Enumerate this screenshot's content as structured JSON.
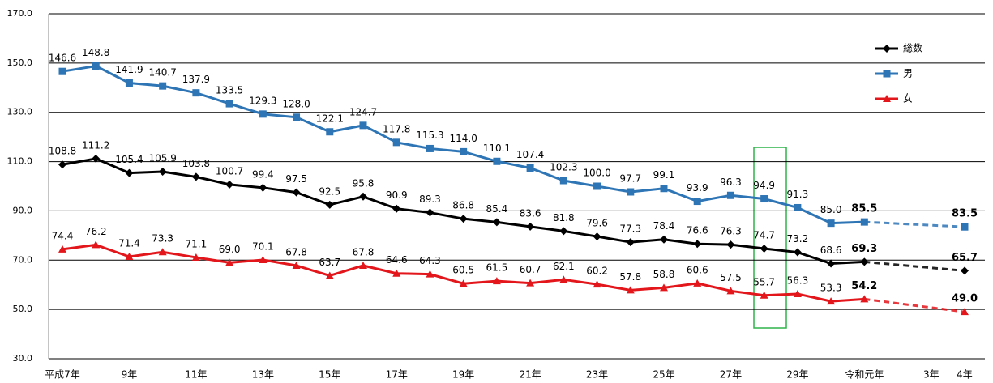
{
  "chart_data": {
    "type": "line",
    "categories": [
      "平成7年",
      null,
      "9年",
      null,
      "11年",
      null,
      "13年",
      null,
      "15年",
      null,
      "17年",
      null,
      "19年",
      null,
      "21年",
      null,
      "23年",
      null,
      "25年",
      null,
      "27年",
      null,
      "29年",
      null,
      "令和元年",
      null,
      "3年",
      "4年"
    ],
    "series": [
      {
        "name": "総数",
        "color": "#000000",
        "marker": "diamond",
        "values": [
          108.8,
          111.2,
          105.4,
          105.9,
          103.8,
          100.7,
          99.4,
          97.5,
          92.5,
          95.8,
          90.9,
          89.3,
          86.8,
          85.4,
          83.6,
          81.8,
          79.6,
          77.3,
          78.4,
          76.6,
          76.3,
          74.7,
          73.2,
          68.6,
          69.3,
          null,
          null,
          65.7
        ],
        "value_labels": [
          "108.8",
          "111.2",
          "105.4",
          "105.9",
          "103.8",
          "100.7",
          "99.4",
          "97.5",
          "92.5",
          "95.8",
          "90.9",
          "89.3",
          "86.8",
          "85.4",
          "83.6",
          "81.8",
          "79.6",
          "77.3",
          "78.4",
          "76.6",
          "76.3",
          "74.7",
          "73.2",
          "68.6",
          "69.3",
          null,
          null,
          "65.7"
        ]
      },
      {
        "name": "男",
        "color": "#2e75b6",
        "marker": "square",
        "values": [
          146.6,
          148.8,
          141.9,
          140.7,
          137.9,
          133.5,
          129.3,
          128.0,
          122.1,
          124.7,
          117.8,
          115.3,
          114.0,
          110.1,
          107.4,
          102.3,
          100.0,
          97.7,
          99.1,
          93.9,
          96.3,
          94.9,
          91.3,
          85.0,
          85.5,
          null,
          null,
          83.5
        ],
        "value_labels": [
          "146.6",
          "148.8",
          "141.9",
          "140.7",
          "137.9",
          "133.5",
          "129.3",
          "128.0",
          "122.1",
          "124.7",
          "117.8",
          "115.3",
          "114.0",
          "110.1",
          "107.4",
          "102.3",
          "100.0",
          "97.7",
          "99.1",
          "93.9",
          "96.3",
          "94.9",
          "91.3",
          "85.0",
          "85.5",
          null,
          null,
          "83.5"
        ]
      },
      {
        "name": "女",
        "color": "#e3161c",
        "marker": "triangle",
        "values": [
          74.4,
          76.2,
          71.4,
          73.3,
          71.1,
          69.0,
          70.1,
          67.8,
          63.7,
          67.8,
          64.6,
          64.3,
          60.5,
          61.5,
          60.7,
          62.1,
          60.2,
          57.8,
          58.8,
          60.6,
          57.5,
          55.7,
          56.3,
          53.3,
          54.2,
          null,
          null,
          49.0
        ],
        "value_labels": [
          "74.4",
          "76.2",
          "71.4",
          "73.3",
          "71.1",
          "69.0",
          "70.1",
          "67.8",
          "63.7",
          "67.8",
          "64.6",
          "64.3",
          "60.5",
          "61.5",
          "60.7",
          "62.1",
          "60.2",
          "57.8",
          "58.8",
          "60.6",
          "57.5",
          "55.7",
          "56.3",
          "53.3",
          "54.2",
          null,
          null,
          "49.0"
        ]
      }
    ],
    "ylim": [
      30,
      170
    ],
    "yticks": [
      {
        "value": 30,
        "label": "30.0"
      },
      {
        "value": 50,
        "label": "50.0"
      },
      {
        "value": 70,
        "label": "70.0"
      },
      {
        "value": 90,
        "label": "90.0"
      },
      {
        "value": 110,
        "label": "110.0"
      },
      {
        "value": 130,
        "label": "130.0"
      },
      {
        "value": 150,
        "label": "150.0"
      },
      {
        "value": 170,
        "label": "170.0"
      }
    ],
    "grid": true,
    "legend": "top-right"
  }
}
